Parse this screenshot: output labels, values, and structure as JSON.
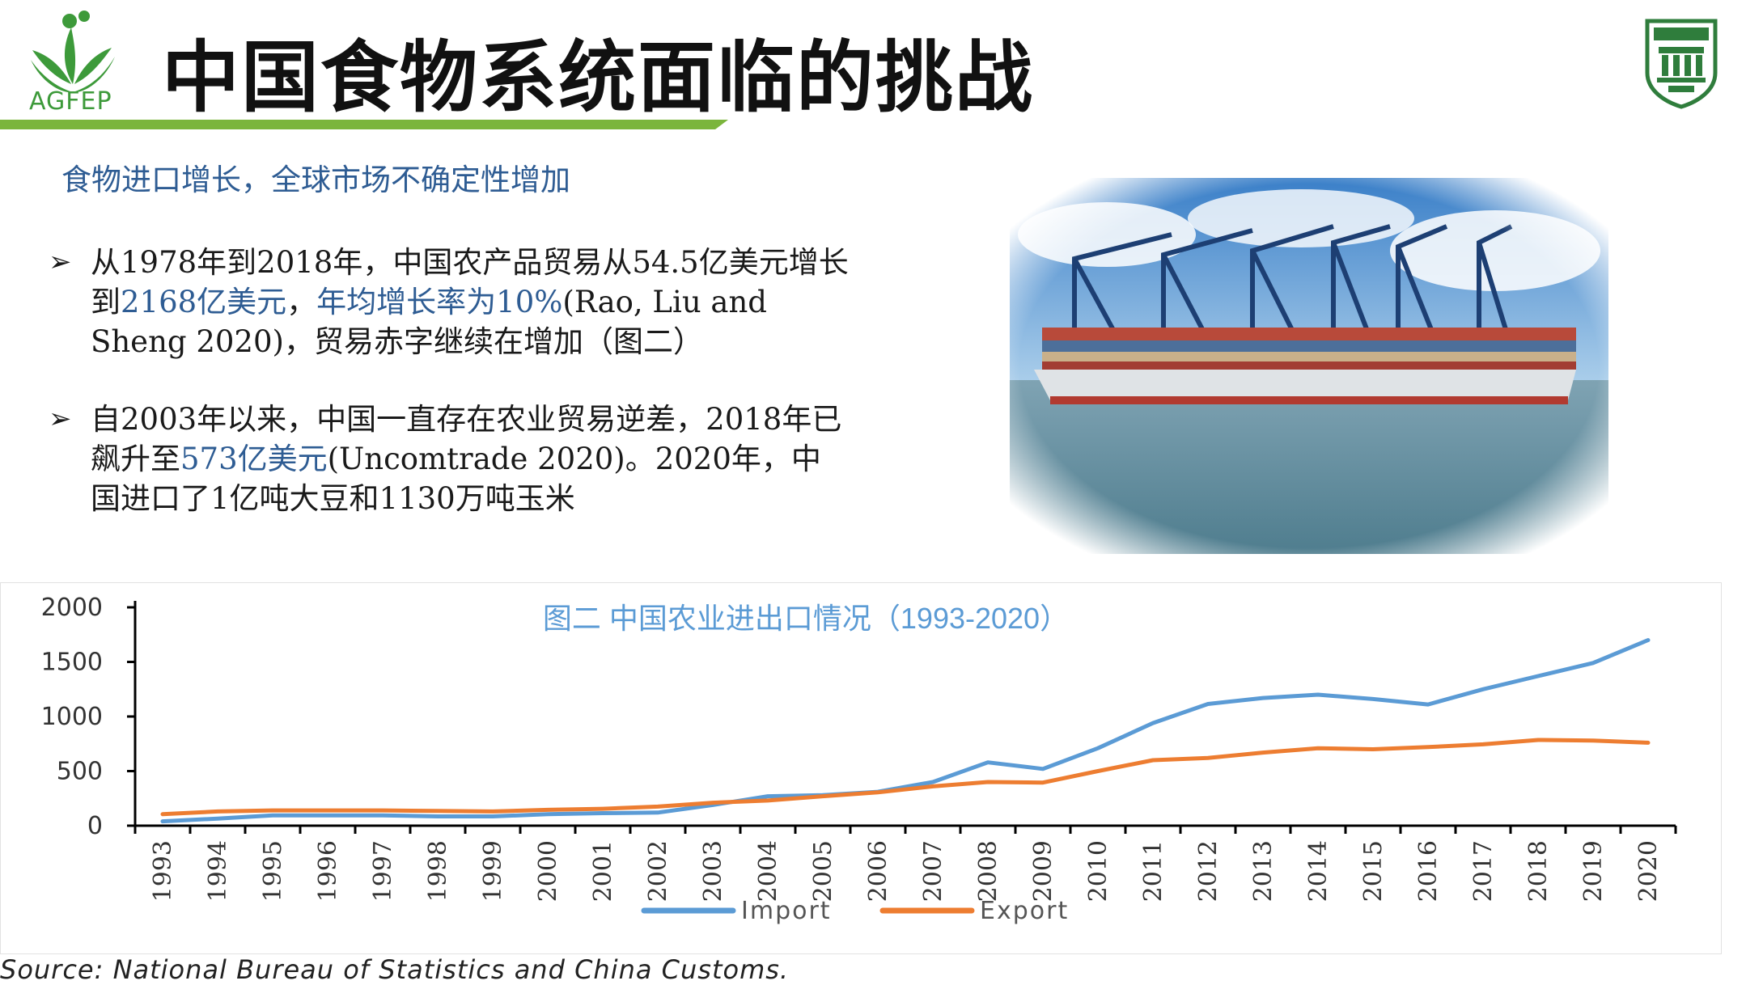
{
  "header": {
    "logo_text": "AGFEP",
    "title": "中国食物系统面临的挑战",
    "colors": {
      "title_bar": "#7bb53c",
      "logo_green": "#3d9a3a",
      "emblem_green": "#2f7d3c"
    },
    "emblem_icon": "university-emblem-icon"
  },
  "content": {
    "subtitle": "食物进口增长，全球市场不确定性增加",
    "bullets": [
      {
        "marker": "➢",
        "parts": [
          {
            "text": "从1978年到2018年，中国农产品贸易从54.5亿美元增长到",
            "highlight": false
          },
          {
            "text": "2168亿美元",
            "highlight": true
          },
          {
            "text": "，",
            "highlight": false
          },
          {
            "text": "年均增长率为10%",
            "highlight": true
          },
          {
            "text": "(Rao, Liu and Sheng 2020)，贸易赤字继续在增加（图二）",
            "highlight": false
          }
        ]
      },
      {
        "marker": "➢",
        "parts": [
          {
            "text": "自2003年以来，中国一直存在农业贸易逆差，2018年已飙升至",
            "highlight": false
          },
          {
            "text": "573亿美元",
            "highlight": true
          },
          {
            "text": "(Uncomtrade 2020)。2020年，中国进口了1亿吨大豆和1130万吨玉米",
            "highlight": false
          }
        ]
      }
    ],
    "photo_icon": "container-ship-port-photo"
  },
  "chart_data": {
    "type": "line",
    "title": "图二 中国农业进出口情况（1993-2020）",
    "xlabel": "",
    "ylabel": "",
    "ylim": [
      0,
      2000
    ],
    "yticks": [
      "2000",
      "1500",
      "1000",
      "500",
      "0"
    ],
    "x": [
      "1993",
      "1994",
      "1995",
      "1996",
      "1997",
      "1998",
      "1999",
      "2000",
      "2001",
      "2002",
      "2003",
      "2004",
      "2005",
      "2006",
      "2007",
      "2008",
      "2009",
      "2010",
      "2011",
      "2012",
      "2013",
      "2014",
      "2015",
      "2016",
      "2017",
      "2018",
      "2019",
      "2020"
    ],
    "series": [
      {
        "name": "Import",
        "color": "#5b9bd5",
        "values": [
          40,
          65,
          95,
          95,
          95,
          85,
          85,
          105,
          115,
          120,
          190,
          270,
          280,
          310,
          400,
          580,
          520,
          710,
          940,
          1115,
          1170,
          1200,
          1160,
          1110,
          1250,
          1370,
          1490,
          1700
        ]
      },
      {
        "name": "Export",
        "color": "#ed7d31",
        "values": [
          105,
          130,
          140,
          140,
          140,
          135,
          130,
          145,
          155,
          175,
          210,
          230,
          270,
          305,
          360,
          400,
          395,
          500,
          600,
          620,
          670,
          710,
          700,
          720,
          745,
          785,
          780,
          760
        ]
      }
    ],
    "grid": false,
    "legend": "bottom-center"
  },
  "footer": {
    "source": "Source: National Bureau of Statistics and China Customs."
  }
}
